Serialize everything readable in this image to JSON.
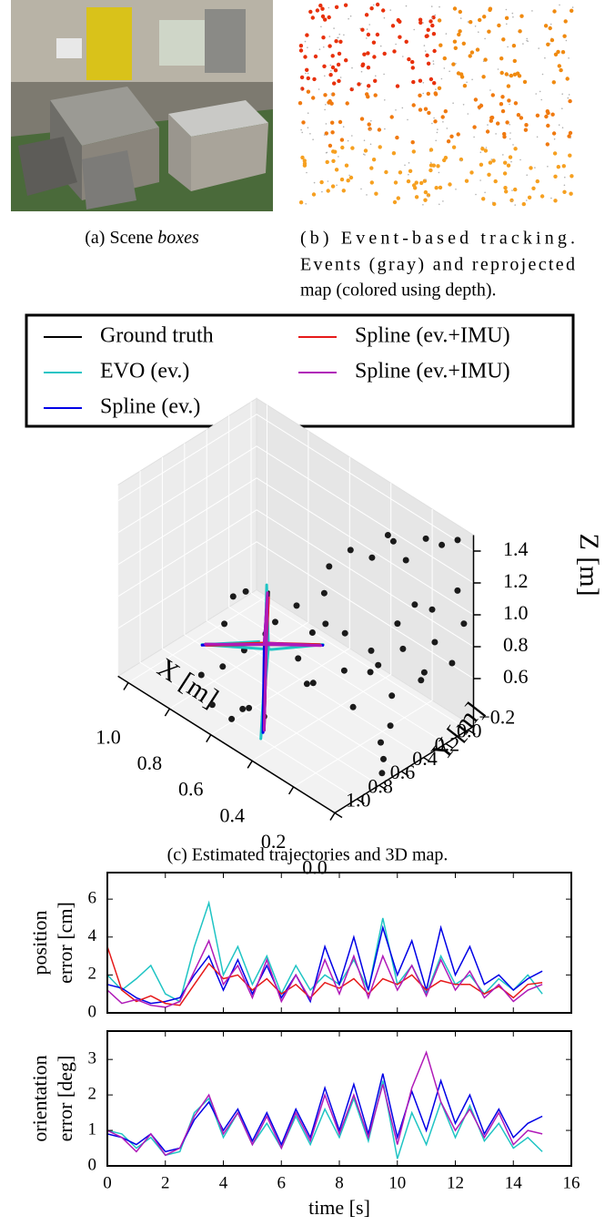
{
  "captions": {
    "a": {
      "prefix": "(a) Scene ",
      "emph": "boxes"
    },
    "b": [
      "(b) Event-based tracking.",
      "Events (gray) and reprojected",
      "map (colored using depth)."
    ],
    "c": "(c) Estimated trajectories and 3D map."
  },
  "chart_data": [
    {
      "type": "scatter3d",
      "xlabel": "X [m]",
      "ylabel": "Y [m]",
      "zlabel": "Z [m]",
      "xlim": [
        0,
        1.05
      ],
      "ylim": [
        -0.25,
        1.0
      ],
      "zlim": [
        0.3,
        1.5
      ],
      "xticks": [
        {
          "value": 1,
          "label": "1.0"
        },
        0.8,
        0.6,
        0.4,
        0.2,
        {
          "value": 0,
          "label": "0.0"
        }
      ],
      "yticks": [
        {
          "value": -0.2,
          "label": "−0.2"
        },
        {
          "value": 0,
          "label": "0.0"
        },
        0.2,
        0.4,
        0.6,
        0.8,
        {
          "value": 1,
          "label": "1.0"
        }
      ],
      "zticks": [
        0.6,
        0.8,
        {
          "value": 1,
          "label": "1.0"
        },
        1.2,
        1.4
      ],
      "points": {
        "color": "#1a1a1a",
        "x": [
          0.3,
          0.25,
          0.35,
          0.2,
          0.28,
          0.32,
          0.15,
          0.05,
          0.1,
          0.4,
          0.45,
          0.35,
          0.15,
          0.12,
          0.18,
          0.1,
          0.2,
          0.08,
          0.15,
          0.05,
          0.22,
          0.1,
          0.18,
          0.05,
          0.12,
          0.25,
          0.3,
          0.08,
          0.1,
          0.06,
          0.04,
          0.55,
          0.6,
          0.65,
          0.7,
          0.75,
          0.62,
          0.5,
          0.55,
          0.45,
          0.7,
          0.68,
          0.4,
          0.35,
          0.5,
          0.02,
          0.04,
          0.22,
          0.26,
          0.58
        ],
        "y": [
          0.3,
          0.2,
          0.4,
          0.1,
          0.0,
          0.5,
          -0.1,
          -0.2,
          -0.15,
          0.6,
          0.7,
          0.55,
          0.0,
          -0.1,
          0.1,
          0.2,
          0.3,
          -0.05,
          0.4,
          0.1,
          0.2,
          0.3,
          0.5,
          -0.15,
          0.0,
          0.45,
          0.35,
          0.35,
          0.4,
          0.45,
          0.5,
          0.6,
          0.7,
          0.8,
          0.9,
          0.6,
          0.95,
          0.9,
          0.75,
          0.8,
          0.5,
          0.65,
          0.45,
          0.6,
          0.4,
          -0.2,
          -0.18,
          -0.05,
          0.6,
          0.85
        ],
        "z": [
          1.4,
          1.35,
          1.3,
          1.45,
          1.38,
          1.2,
          1.42,
          1.45,
          1.4,
          1.1,
          1.0,
          0.95,
          1.05,
          1.0,
          0.95,
          0.9,
          0.85,
          0.85,
          0.8,
          0.75,
          0.7,
          0.65,
          0.6,
          0.7,
          0.6,
          0.75,
          0.9,
          0.5,
          0.4,
          0.35,
          0.3,
          0.8,
          0.7,
          0.6,
          0.55,
          0.7,
          0.45,
          0.5,
          0.4,
          0.45,
          0.9,
          0.95,
          0.55,
          0.65,
          0.6,
          0.95,
          1.15,
          1.25,
          1.1,
          0.35
        ]
      },
      "series": [
        {
          "name": "Ground truth",
          "color": "#000000",
          "x": [
            0.6,
            0.6,
            0.6,
            0.6,
            0.6,
            0.6,
            0.6,
            0.6,
            0.6
          ],
          "y": [
            0.5,
            1.05,
            0.5,
            0.0,
            0.5,
            0.48,
            0.5,
            0.52,
            0.5
          ],
          "z": [
            0.65,
            0.89,
            0.65,
            0.43,
            0.65,
            0.97,
            0.65,
            0.12,
            0.65
          ]
        },
        {
          "name": "EVO (ev.)",
          "color": "#1fc4c4",
          "x": [
            0.62,
            0.6,
            0.58,
            0.61,
            0.6,
            0.62,
            0.59,
            0.6,
            0.6
          ],
          "y": [
            0.52,
            1.08,
            0.49,
            -0.03,
            0.51,
            0.46,
            0.5,
            0.55,
            0.5
          ],
          "z": [
            0.66,
            0.9,
            0.63,
            0.41,
            0.66,
            0.99,
            0.64,
            0.08,
            0.65
          ]
        },
        {
          "name": "Spline (ev.)",
          "color": "#0000e6",
          "x": [
            0.6,
            0.61,
            0.6,
            0.59,
            0.6,
            0.6,
            0.61,
            0.6,
            0.6
          ],
          "y": [
            0.5,
            1.06,
            0.51,
            0.01,
            0.5,
            0.49,
            0.5,
            0.53,
            0.5
          ],
          "z": [
            0.65,
            0.88,
            0.66,
            0.44,
            0.65,
            0.96,
            0.65,
            0.11,
            0.65
          ]
        },
        {
          "name": "Spline (ev.+IMU)",
          "color": "#e61a1a",
          "x": [
            0.6,
            0.6,
            0.61,
            0.6,
            0.6,
            0.59,
            0.6,
            0.6,
            0.6
          ],
          "y": [
            0.5,
            1.04,
            0.5,
            0.02,
            0.5,
            0.5,
            0.5,
            0.52,
            0.5
          ],
          "z": [
            0.65,
            0.88,
            0.65,
            0.44,
            0.65,
            0.95,
            0.65,
            0.13,
            0.65
          ]
        },
        {
          "name": "Spline (ev.+IMU)",
          "color": "#b01ab8",
          "x": [
            0.6,
            0.6,
            0.6,
            0.6,
            0.61,
            0.6,
            0.6,
            0.6,
            0.6
          ],
          "y": [
            0.5,
            1.05,
            0.5,
            0.01,
            0.5,
            0.49,
            0.5,
            0.52,
            0.5
          ],
          "z": [
            0.65,
            0.89,
            0.65,
            0.43,
            0.65,
            0.97,
            0.65,
            0.12,
            0.65
          ]
        }
      ]
    },
    {
      "type": "line",
      "ylabel": [
        "position",
        "error [cm]"
      ],
      "xtick_labels": false,
      "x": [
        0,
        0.5,
        1,
        1.5,
        2,
        2.5,
        3,
        3.5,
        4,
        4.5,
        5,
        5.5,
        6,
        6.5,
        7,
        7.5,
        8,
        8.5,
        9,
        9.5,
        10,
        10.5,
        11,
        11.5,
        12,
        12.5,
        13,
        13.5,
        14,
        14.5,
        15
      ],
      "xlim": [
        0,
        16
      ],
      "xticks": [
        0,
        2,
        4,
        6,
        8,
        10,
        12,
        14,
        16
      ],
      "ylim": [
        0,
        7.4
      ],
      "yticks": [
        0,
        2,
        4,
        6
      ],
      "series": [
        {
          "color": "#1fc4c4",
          "values": [
            2.0,
            1.2,
            1.8,
            2.5,
            1.0,
            0.6,
            3.5,
            5.8,
            2.0,
            3.5,
            1.5,
            3.0,
            1.0,
            2.5,
            1.2,
            2.0,
            1.5,
            2.8,
            1.2,
            5.0,
            1.5,
            2.5,
            1.0,
            3.0,
            1.5,
            2.0,
            1.0,
            1.8,
            1.2,
            2.0,
            1.0
          ]
        },
        {
          "color": "#0000e6",
          "values": [
            1.5,
            1.3,
            0.8,
            0.5,
            0.6,
            0.8,
            2.0,
            3.0,
            1.2,
            2.8,
            1.0,
            2.5,
            0.8,
            2.0,
            0.6,
            3.5,
            1.5,
            4.0,
            1.2,
            4.5,
            2.0,
            3.8,
            1.2,
            4.5,
            2.0,
            3.5,
            1.5,
            2.0,
            1.2,
            1.8,
            2.2
          ]
        },
        {
          "color": "#e61a1a",
          "values": [
            3.5,
            1.2,
            0.6,
            0.9,
            0.5,
            0.4,
            1.5,
            2.6,
            1.8,
            2.0,
            1.2,
            1.8,
            1.0,
            1.5,
            0.8,
            1.6,
            1.3,
            1.8,
            1.0,
            1.8,
            1.5,
            2.0,
            1.2,
            1.7,
            1.5,
            1.5,
            1.0,
            1.4,
            0.8,
            1.5,
            1.6
          ]
        },
        {
          "color": "#b01ab8",
          "values": [
            1.2,
            0.5,
            0.7,
            0.4,
            0.3,
            0.6,
            2.2,
            3.8,
            1.5,
            2.5,
            0.8,
            2.8,
            0.6,
            2.0,
            0.7,
            2.8,
            1.0,
            3.0,
            0.8,
            3.0,
            1.2,
            2.5,
            0.9,
            2.8,
            1.2,
            2.2,
            0.8,
            1.5,
            0.6,
            1.2,
            1.5
          ]
        }
      ]
    },
    {
      "type": "line",
      "ylabel": [
        "orientation",
        "error [deg]"
      ],
      "xlabel": "time [s]",
      "xtick_labels": true,
      "x": [
        0,
        0.5,
        1,
        1.5,
        2,
        2.5,
        3,
        3.5,
        4,
        4.5,
        5,
        5.5,
        6,
        6.5,
        7,
        7.5,
        8,
        8.5,
        9,
        9.5,
        10,
        10.5,
        11,
        11.5,
        12,
        12.5,
        13,
        13.5,
        14,
        14.5,
        15
      ],
      "xlim": [
        0,
        16
      ],
      "xticks": [
        0,
        2,
        4,
        6,
        8,
        10,
        12,
        14,
        16
      ],
      "ylim": [
        0,
        3.8
      ],
      "yticks": [
        0,
        1,
        2,
        3
      ],
      "series": [
        {
          "color": "#1fc4c4",
          "values": [
            1.0,
            0.9,
            0.5,
            0.8,
            0.3,
            0.4,
            1.5,
            1.9,
            0.8,
            1.5,
            0.6,
            1.2,
            0.5,
            1.4,
            0.6,
            1.6,
            0.8,
            1.9,
            0.7,
            2.4,
            0.2,
            1.5,
            0.6,
            1.8,
            0.8,
            1.7,
            0.7,
            1.2,
            0.5,
            0.8,
            0.4
          ]
        },
        {
          "color": "#0000e6",
          "values": [
            0.9,
            0.8,
            0.6,
            0.9,
            0.4,
            0.5,
            1.3,
            1.8,
            1.0,
            1.6,
            0.7,
            1.5,
            0.6,
            1.6,
            0.8,
            2.2,
            1.0,
            2.3,
            0.9,
            2.6,
            0.8,
            2.1,
            1.0,
            2.4,
            1.2,
            2.0,
            0.9,
            1.6,
            0.8,
            1.2,
            1.4
          ]
        },
        {
          "color": "#b01ab8",
          "values": [
            1.0,
            0.8,
            0.4,
            0.9,
            0.3,
            0.5,
            1.4,
            2.0,
            0.9,
            1.5,
            0.6,
            1.4,
            0.5,
            1.5,
            0.7,
            2.0,
            0.9,
            2.0,
            0.8,
            2.3,
            0.6,
            2.2,
            3.2,
            1.8,
            1.0,
            1.6,
            0.8,
            1.5,
            0.6,
            1.0,
            0.9
          ]
        }
      ]
    }
  ]
}
